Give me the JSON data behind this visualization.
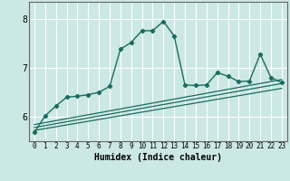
{
  "xlabel": "Humidex (Indice chaleur)",
  "bg_color": "#cce8e4",
  "grid_color": "#ffffff",
  "line_color": "#1a6b60",
  "xlim": [
    -0.5,
    23.5
  ],
  "ylim": [
    5.5,
    8.35
  ],
  "yticks": [
    6,
    7,
    8
  ],
  "xticks": [
    0,
    1,
    2,
    3,
    4,
    5,
    6,
    7,
    8,
    9,
    10,
    11,
    12,
    13,
    14,
    15,
    16,
    17,
    18,
    19,
    20,
    21,
    22,
    23
  ],
  "main_line": {
    "x": [
      0,
      1,
      2,
      3,
      4,
      5,
      6,
      7,
      8,
      9,
      10,
      11,
      12,
      13,
      14,
      15,
      16,
      17,
      18,
      19,
      20,
      21,
      22,
      23
    ],
    "y": [
      5.68,
      6.02,
      6.22,
      6.4,
      6.42,
      6.45,
      6.5,
      6.62,
      7.38,
      7.52,
      7.76,
      7.76,
      7.95,
      7.65,
      6.65,
      6.64,
      6.65,
      6.9,
      6.83,
      6.72,
      6.73,
      7.28,
      6.8,
      6.7
    ]
  },
  "band_lines": [
    {
      "x": [
        0,
        23
      ],
      "y": [
        5.72,
        6.58
      ]
    },
    {
      "x": [
        0,
        23
      ],
      "y": [
        5.78,
        6.68
      ]
    },
    {
      "x": [
        0,
        23
      ],
      "y": [
        5.84,
        6.76
      ]
    }
  ],
  "spine_color": "#666666",
  "xlabel_fontsize": 7,
  "tick_fontsize_x": 5.5,
  "tick_fontsize_y": 7
}
